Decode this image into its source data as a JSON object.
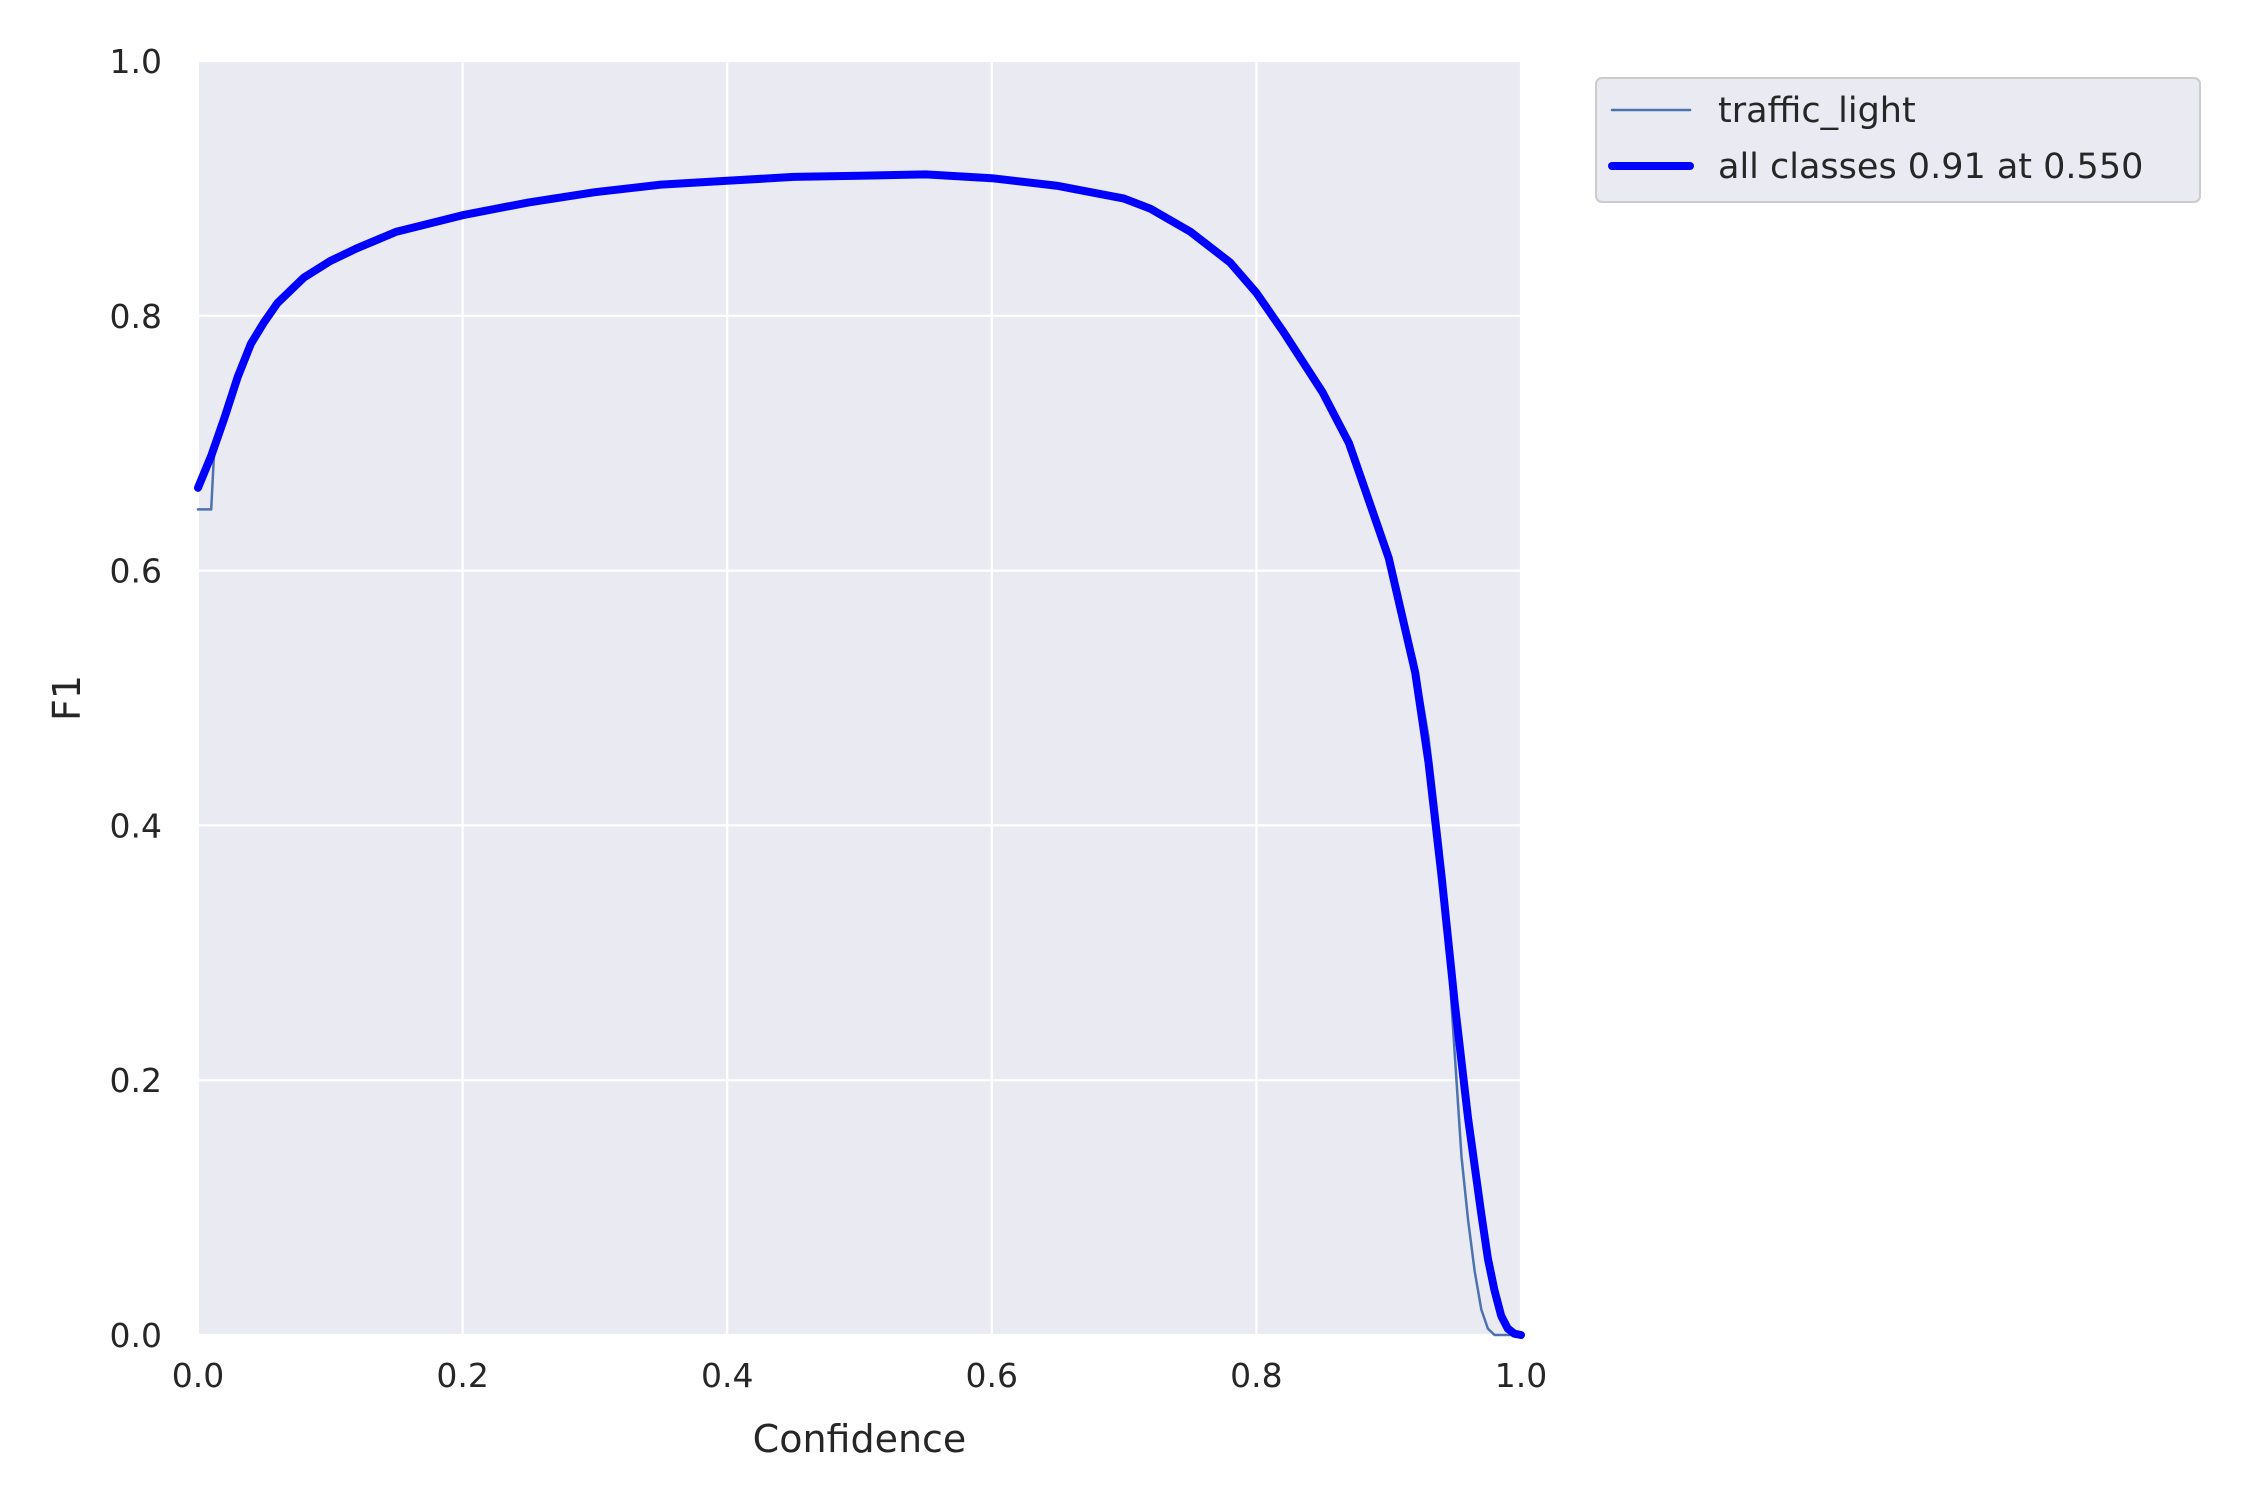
{
  "chart_data": {
    "type": "line",
    "title": "",
    "xlabel": "Confidence",
    "ylabel": "F1",
    "xlim": [
      0.0,
      1.0
    ],
    "ylim": [
      0.0,
      1.0
    ],
    "grid": true,
    "legend_placement": "outside-top-right",
    "background_color": "#eaeaf2",
    "xticks": [
      "0.0",
      "0.2",
      "0.4",
      "0.6",
      "0.8",
      "1.0"
    ],
    "yticks": [
      "0.0",
      "0.2",
      "0.4",
      "0.6",
      "0.8",
      "1.0"
    ],
    "series": [
      {
        "name": "traffic_light",
        "color": "#4c72b0",
        "thin": true,
        "x": [
          0.0,
          0.01,
          0.012,
          0.02,
          0.03,
          0.04,
          0.05,
          0.06,
          0.08,
          0.1,
          0.12,
          0.15,
          0.2,
          0.25,
          0.3,
          0.35,
          0.4,
          0.45,
          0.5,
          0.55,
          0.6,
          0.65,
          0.7,
          0.72,
          0.75,
          0.78,
          0.8,
          0.82,
          0.85,
          0.87,
          0.9,
          0.92,
          0.93,
          0.94,
          0.95,
          0.955,
          0.96,
          0.965,
          0.97,
          0.975,
          0.98,
          1.0
        ],
        "y": [
          0.648,
          0.648,
          0.69,
          0.72,
          0.755,
          0.78,
          0.795,
          0.81,
          0.83,
          0.843,
          0.853,
          0.866,
          0.879,
          0.889,
          0.897,
          0.903,
          0.906,
          0.909,
          0.91,
          0.911,
          0.908,
          0.902,
          0.892,
          0.884,
          0.866,
          0.842,
          0.818,
          0.788,
          0.74,
          0.7,
          0.61,
          0.53,
          0.47,
          0.38,
          0.22,
          0.14,
          0.09,
          0.05,
          0.02,
          0.005,
          0.0,
          0.0
        ]
      },
      {
        "name": "all classes 0.91 at 0.550",
        "color": "#0000ff",
        "thin": false,
        "x": [
          0.0,
          0.01,
          0.02,
          0.03,
          0.04,
          0.05,
          0.06,
          0.08,
          0.1,
          0.12,
          0.15,
          0.2,
          0.25,
          0.3,
          0.35,
          0.4,
          0.45,
          0.5,
          0.55,
          0.6,
          0.65,
          0.7,
          0.72,
          0.75,
          0.78,
          0.8,
          0.82,
          0.85,
          0.87,
          0.9,
          0.92,
          0.93,
          0.94,
          0.95,
          0.96,
          0.97,
          0.975,
          0.98,
          0.985,
          0.99,
          0.995,
          1.0
        ],
        "y": [
          0.665,
          0.69,
          0.72,
          0.752,
          0.778,
          0.795,
          0.81,
          0.83,
          0.843,
          0.853,
          0.866,
          0.879,
          0.889,
          0.897,
          0.903,
          0.906,
          0.909,
          0.91,
          0.911,
          0.908,
          0.902,
          0.892,
          0.884,
          0.866,
          0.842,
          0.818,
          0.788,
          0.74,
          0.7,
          0.61,
          0.52,
          0.45,
          0.36,
          0.26,
          0.17,
          0.095,
          0.06,
          0.035,
          0.015,
          0.005,
          0.001,
          0.0
        ]
      }
    ]
  }
}
